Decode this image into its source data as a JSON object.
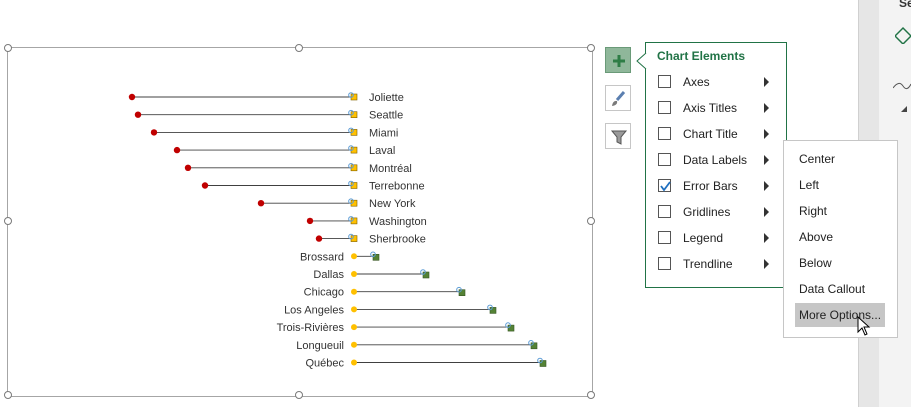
{
  "side_pane": {
    "title": "Se"
  },
  "chart_buttons": [
    {
      "name": "chart-elements-button",
      "icon": "plus-icon"
    },
    {
      "name": "chart-styles-button",
      "icon": "paintbrush-icon"
    },
    {
      "name": "chart-filters-button",
      "icon": "filter-icon"
    }
  ],
  "chart_elements_panel": {
    "title": "Chart Elements",
    "items": [
      {
        "label": "Axes",
        "checked": false
      },
      {
        "label": "Axis Titles",
        "checked": false
      },
      {
        "label": "Chart Title",
        "checked": false
      },
      {
        "label": "Data Labels",
        "checked": false
      },
      {
        "label": "Error Bars",
        "checked": true
      },
      {
        "label": "Gridlines",
        "checked": false
      },
      {
        "label": "Legend",
        "checked": false
      },
      {
        "label": "Trendline",
        "checked": false
      }
    ]
  },
  "data_labels_submenu": {
    "items": [
      "Center",
      "Left",
      "Right",
      "Above",
      "Below",
      "Data Callout",
      "More Options..."
    ],
    "highlighted": "More Options..."
  },
  "chart_data": {
    "type": "scatter",
    "description_free": true,
    "colors": {
      "red_point": "#c00000",
      "yellow_point": "#ffc000",
      "blue_marker": "#5b9bd5",
      "green_marker": "#548235",
      "line": "#404040"
    },
    "rows": [
      {
        "label": "Joliette",
        "start": 132,
        "end": 352
      },
      {
        "label": "Seattle",
        "start": 138,
        "end": 352
      },
      {
        "label": "Miami",
        "start": 154,
        "end": 352
      },
      {
        "label": "Laval",
        "start": 177,
        "end": 352
      },
      {
        "label": "Montréal",
        "start": 188,
        "end": 352
      },
      {
        "label": "Terrebonne",
        "start": 205,
        "end": 352
      },
      {
        "label": "New York",
        "start": 261,
        "end": 352
      },
      {
        "label": "Washington",
        "start": 310,
        "end": 352
      },
      {
        "label": "Sherbrooke",
        "start": 319,
        "end": 352
      },
      {
        "label": "Brossard",
        "start": 354,
        "end": 374
      },
      {
        "label": "Dallas",
        "start": 354,
        "end": 424
      },
      {
        "label": "Chicago",
        "start": 354,
        "end": 460
      },
      {
        "label": "Los Angeles",
        "start": 354,
        "end": 491
      },
      {
        "label": "Trois-Rivières",
        "start": 354,
        "end": 509
      },
      {
        "label": "Longueuil",
        "start": 354,
        "end": 532
      },
      {
        "label": "Québec",
        "start": 354,
        "end": 541
      }
    ]
  }
}
